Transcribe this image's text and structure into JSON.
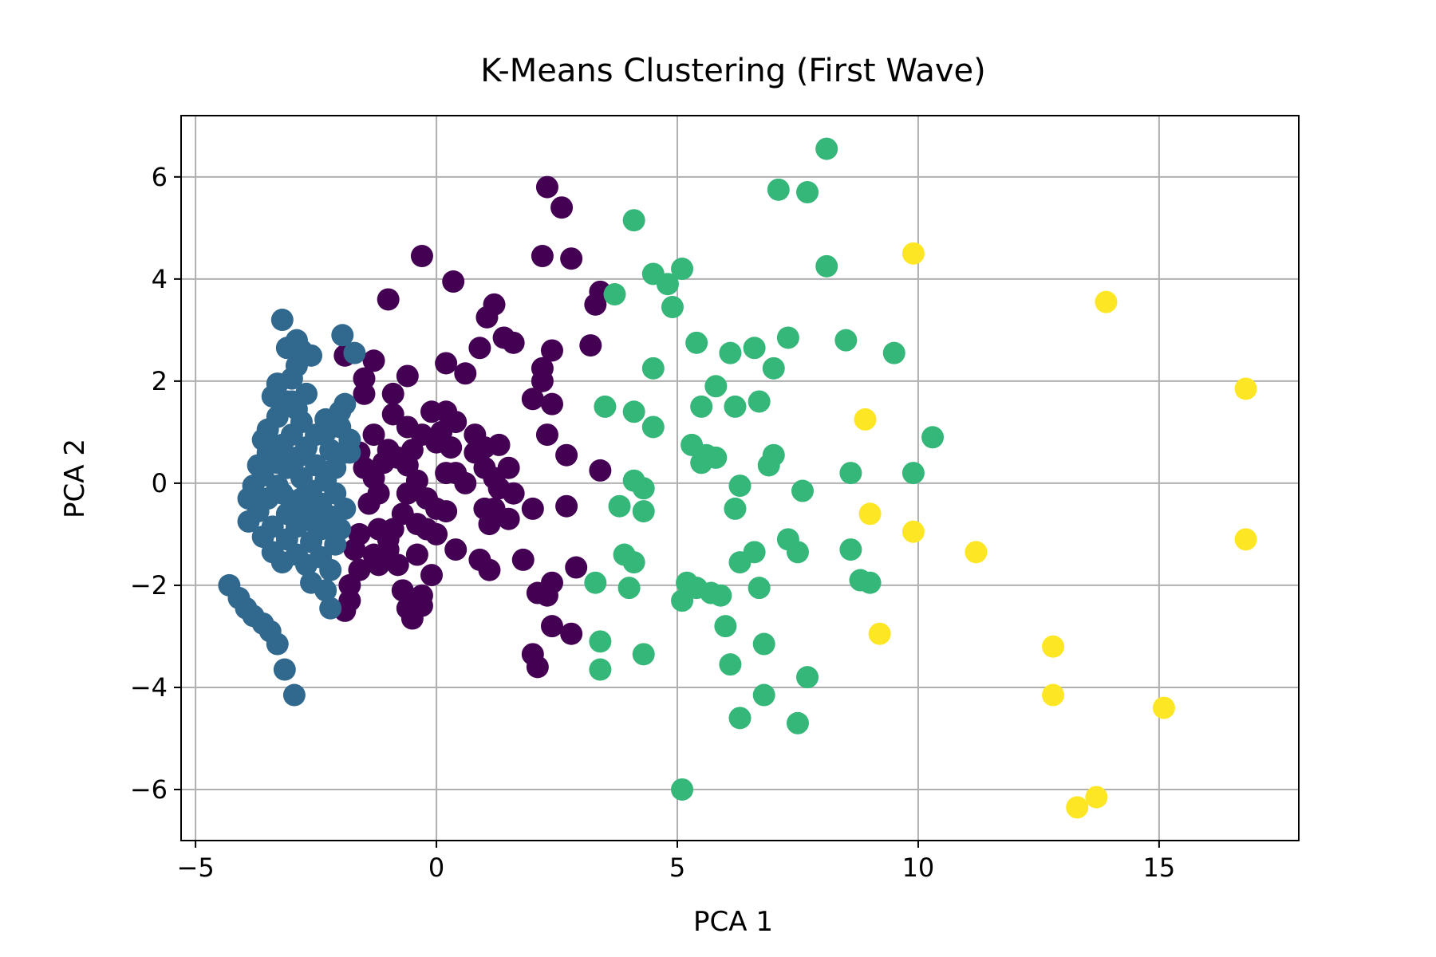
{
  "chart_data": {
    "type": "scatter",
    "title": "K-Means Clustering (First Wave)",
    "xlabel": "PCA 1",
    "ylabel": "PCA 2",
    "xlim": [
      -5.3,
      17.9
    ],
    "ylim": [
      -7.0,
      7.2
    ],
    "xticks": [
      -5,
      0,
      5,
      10,
      15
    ],
    "yticks": [
      -6,
      -4,
      -2,
      0,
      2,
      4,
      6
    ],
    "grid": true,
    "legend": "none",
    "series": [
      {
        "color": "#440154",
        "points": [
          [
            2.3,
            5.8
          ],
          [
            2.6,
            5.4
          ],
          [
            2.2,
            4.45
          ],
          [
            2.8,
            4.4
          ],
          [
            -0.3,
            4.45
          ],
          [
            0.35,
            3.95
          ],
          [
            -1.0,
            3.6
          ],
          [
            3.4,
            3.75
          ],
          [
            3.3,
            3.5
          ],
          [
            1.2,
            3.5
          ],
          [
            1.05,
            3.25
          ],
          [
            1.4,
            2.85
          ],
          [
            1.6,
            2.75
          ],
          [
            3.2,
            2.7
          ],
          [
            2.4,
            2.6
          ],
          [
            0.9,
            2.65
          ],
          [
            -1.3,
            2.4
          ],
          [
            0.2,
            2.35
          ],
          [
            -1.9,
            2.5
          ],
          [
            -0.6,
            2.1
          ],
          [
            0.6,
            2.15
          ],
          [
            2.2,
            2.25
          ],
          [
            2.2,
            2.0
          ],
          [
            -1.5,
            2.05
          ],
          [
            -1.5,
            1.75
          ],
          [
            -0.9,
            1.75
          ],
          [
            2.0,
            1.65
          ],
          [
            2.4,
            1.55
          ],
          [
            0.2,
            1.4
          ],
          [
            -0.1,
            1.4
          ],
          [
            -0.9,
            1.35
          ],
          [
            0.4,
            1.2
          ],
          [
            -0.6,
            1.1
          ],
          [
            -0.3,
            0.95
          ],
          [
            0.8,
            0.95
          ],
          [
            2.3,
            0.95
          ],
          [
            -1.3,
            0.95
          ],
          [
            -0.5,
            0.65
          ],
          [
            1.0,
            0.7
          ],
          [
            1.3,
            0.75
          ],
          [
            0.0,
            0.8
          ],
          [
            0.3,
            0.7
          ],
          [
            -1.0,
            0.65
          ],
          [
            -1.6,
            0.6
          ],
          [
            -1.1,
            0.4
          ],
          [
            -0.6,
            0.35
          ],
          [
            0.8,
            0.6
          ],
          [
            2.7,
            0.55
          ],
          [
            3.4,
            0.25
          ],
          [
            0.2,
            0.2
          ],
          [
            1.0,
            0.3
          ],
          [
            1.5,
            0.3
          ],
          [
            1.2,
            0.1
          ],
          [
            -1.3,
            0.1
          ],
          [
            -0.4,
            0.05
          ],
          [
            1.3,
            -0.1
          ],
          [
            0.4,
            0.2
          ],
          [
            -0.6,
            -0.2
          ],
          [
            -1.2,
            -0.2
          ],
          [
            -0.2,
            -0.3
          ],
          [
            -1.4,
            -0.4
          ],
          [
            0.0,
            -0.5
          ],
          [
            1.0,
            -0.5
          ],
          [
            1.2,
            -0.5
          ],
          [
            2.0,
            -0.5
          ],
          [
            2.7,
            -0.45
          ],
          [
            -0.7,
            -0.6
          ],
          [
            0.2,
            -0.55
          ],
          [
            1.5,
            -0.7
          ],
          [
            1.1,
            -0.8
          ],
          [
            -0.4,
            -0.8
          ],
          [
            -1.2,
            -0.9
          ],
          [
            -1.6,
            -1.0
          ],
          [
            -0.9,
            -0.9
          ],
          [
            0.0,
            -1.0
          ],
          [
            -1.7,
            -1.3
          ],
          [
            -1.0,
            -1.3
          ],
          [
            -0.4,
            -1.4
          ],
          [
            0.4,
            -1.3
          ],
          [
            -1.2,
            -1.6
          ],
          [
            0.9,
            -1.5
          ],
          [
            1.8,
            -1.5
          ],
          [
            1.1,
            -1.7
          ],
          [
            -1.6,
            -1.7
          ],
          [
            -0.1,
            -1.8
          ],
          [
            2.9,
            -1.65
          ],
          [
            -1.8,
            -2.0
          ],
          [
            2.4,
            -1.95
          ],
          [
            -0.7,
            -2.1
          ],
          [
            2.1,
            -2.15
          ],
          [
            -0.3,
            -2.2
          ],
          [
            2.3,
            -2.2
          ],
          [
            -1.8,
            -2.3
          ],
          [
            -0.6,
            -2.45
          ],
          [
            -0.3,
            -2.4
          ],
          [
            -1.9,
            -2.5
          ],
          [
            -0.5,
            -2.65
          ],
          [
            2.4,
            -2.8
          ],
          [
            2.8,
            -2.95
          ],
          [
            2.0,
            -3.35
          ],
          [
            2.1,
            -3.6
          ],
          [
            -1.0,
            -1.1
          ],
          [
            -0.8,
            -1.6
          ],
          [
            -1.3,
            -1.4
          ],
          [
            -0.2,
            -0.9
          ],
          [
            1.6,
            -0.2
          ],
          [
            0.6,
            0.0
          ],
          [
            -1.5,
            0.3
          ],
          [
            -0.8,
            0.5
          ],
          [
            0.1,
            1.0
          ]
        ]
      },
      {
        "color": "#31688e",
        "points": [
          [
            -3.2,
            3.2
          ],
          [
            -1.95,
            2.9
          ],
          [
            -2.9,
            2.8
          ],
          [
            -2.8,
            2.6
          ],
          [
            -3.1,
            2.65
          ],
          [
            -2.6,
            2.5
          ],
          [
            -1.7,
            2.55
          ],
          [
            -2.9,
            2.3
          ],
          [
            -3.0,
            2.05
          ],
          [
            -3.3,
            1.95
          ],
          [
            -2.7,
            1.75
          ],
          [
            -3.4,
            1.7
          ],
          [
            -3.1,
            1.6
          ],
          [
            -2.9,
            1.45
          ],
          [
            -1.9,
            1.55
          ],
          [
            -3.3,
            1.3
          ],
          [
            -2.8,
            1.2
          ],
          [
            -2.3,
            1.25
          ],
          [
            -2.0,
            1.1
          ],
          [
            -3.5,
            1.05
          ],
          [
            -3.0,
            0.95
          ],
          [
            -2.5,
            0.95
          ],
          [
            -1.8,
            0.85
          ],
          [
            -3.6,
            0.85
          ],
          [
            -3.2,
            0.75
          ],
          [
            -2.7,
            0.7
          ],
          [
            -2.2,
            0.65
          ],
          [
            -3.4,
            0.55
          ],
          [
            -2.9,
            0.5
          ],
          [
            -1.8,
            0.6
          ],
          [
            -3.7,
            0.35
          ],
          [
            -3.1,
            0.3
          ],
          [
            -2.5,
            0.35
          ],
          [
            -2.1,
            0.3
          ],
          [
            -3.6,
            0.15
          ],
          [
            -2.8,
            0.1
          ],
          [
            -2.3,
            0.05
          ],
          [
            -3.8,
            -0.05
          ],
          [
            -3.3,
            -0.05
          ],
          [
            -2.6,
            -0.15
          ],
          [
            -2.1,
            -0.2
          ],
          [
            -3.9,
            -0.3
          ],
          [
            -3.5,
            -0.3
          ],
          [
            -3.0,
            -0.35
          ],
          [
            -2.4,
            -0.4
          ],
          [
            -1.9,
            -0.5
          ],
          [
            -3.7,
            -0.55
          ],
          [
            -3.1,
            -0.6
          ],
          [
            -2.7,
            -0.6
          ],
          [
            -2.2,
            -0.65
          ],
          [
            -3.9,
            -0.75
          ],
          [
            -3.4,
            -0.85
          ],
          [
            -2.9,
            -0.85
          ],
          [
            -2.4,
            -0.9
          ],
          [
            -3.6,
            -1.05
          ],
          [
            -3.1,
            -1.1
          ],
          [
            -2.6,
            -1.15
          ],
          [
            -2.1,
            -1.2
          ],
          [
            -3.4,
            -1.35
          ],
          [
            -2.9,
            -1.4
          ],
          [
            -2.4,
            -1.45
          ],
          [
            -3.2,
            -1.55
          ],
          [
            -2.7,
            -1.6
          ],
          [
            -2.2,
            -1.7
          ],
          [
            -2.6,
            -1.95
          ],
          [
            -2.3,
            -2.1
          ],
          [
            -2.2,
            -2.45
          ],
          [
            -4.3,
            -2.0
          ],
          [
            -4.1,
            -2.25
          ],
          [
            -3.95,
            -2.45
          ],
          [
            -3.8,
            -2.6
          ],
          [
            -3.6,
            -2.75
          ],
          [
            -3.45,
            -2.9
          ],
          [
            -3.3,
            -3.15
          ],
          [
            -3.15,
            -3.65
          ],
          [
            -2.95,
            -4.15
          ],
          [
            -2.0,
            1.4
          ],
          [
            -1.9,
            0.6
          ],
          [
            -2.5,
            -0.8
          ],
          [
            -3.0,
            1.6
          ],
          [
            -3.3,
            0.4
          ],
          [
            -2.8,
            -0.3
          ],
          [
            -3.5,
            0.6
          ],
          [
            -2.3,
            1.0
          ],
          [
            -2.0,
            -0.9
          ],
          [
            -3.2,
            -0.2
          ]
        ]
      },
      {
        "color": "#35b779",
        "points": [
          [
            8.1,
            6.55
          ],
          [
            7.1,
            5.75
          ],
          [
            7.7,
            5.7
          ],
          [
            4.1,
            5.15
          ],
          [
            4.5,
            4.1
          ],
          [
            5.1,
            4.2
          ],
          [
            4.8,
            3.9
          ],
          [
            8.1,
            4.25
          ],
          [
            3.7,
            3.7
          ],
          [
            4.9,
            3.45
          ],
          [
            7.3,
            2.85
          ],
          [
            8.5,
            2.8
          ],
          [
            5.4,
            2.75
          ],
          [
            6.6,
            2.65
          ],
          [
            6.1,
            2.55
          ],
          [
            9.5,
            2.55
          ],
          [
            4.5,
            2.25
          ],
          [
            7.0,
            2.25
          ],
          [
            5.8,
            1.9
          ],
          [
            6.7,
            1.6
          ],
          [
            3.5,
            1.5
          ],
          [
            5.5,
            1.5
          ],
          [
            6.2,
            1.5
          ],
          [
            4.1,
            1.4
          ],
          [
            4.5,
            1.1
          ],
          [
            10.3,
            0.9
          ],
          [
            5.3,
            0.75
          ],
          [
            7.0,
            0.55
          ],
          [
            5.6,
            0.55
          ],
          [
            5.8,
            0.5
          ],
          [
            5.5,
            0.4
          ],
          [
            6.9,
            0.35
          ],
          [
            8.6,
            0.2
          ],
          [
            9.9,
            0.2
          ],
          [
            4.1,
            0.05
          ],
          [
            4.3,
            -0.1
          ],
          [
            6.3,
            -0.05
          ],
          [
            7.6,
            -0.15
          ],
          [
            3.8,
            -0.45
          ],
          [
            4.3,
            -0.55
          ],
          [
            6.2,
            -0.5
          ],
          [
            7.3,
            -1.1
          ],
          [
            7.5,
            -1.35
          ],
          [
            6.6,
            -1.35
          ],
          [
            8.6,
            -1.3
          ],
          [
            3.9,
            -1.4
          ],
          [
            4.1,
            -1.55
          ],
          [
            6.3,
            -1.55
          ],
          [
            8.8,
            -1.9
          ],
          [
            9.0,
            -1.95
          ],
          [
            3.3,
            -1.95
          ],
          [
            4.0,
            -2.05
          ],
          [
            5.2,
            -1.95
          ],
          [
            5.4,
            -2.05
          ],
          [
            5.7,
            -2.15
          ],
          [
            5.1,
            -2.3
          ],
          [
            5.9,
            -2.2
          ],
          [
            6.7,
            -2.05
          ],
          [
            6.0,
            -2.8
          ],
          [
            3.4,
            -3.1
          ],
          [
            4.3,
            -3.35
          ],
          [
            6.8,
            -3.15
          ],
          [
            3.4,
            -3.65
          ],
          [
            6.1,
            -3.55
          ],
          [
            7.7,
            -3.8
          ],
          [
            6.8,
            -4.15
          ],
          [
            6.3,
            -4.6
          ],
          [
            7.5,
            -4.7
          ],
          [
            5.1,
            -6.0
          ]
        ]
      },
      {
        "color": "#fde725",
        "points": [
          [
            9.9,
            4.5
          ],
          [
            13.9,
            3.55
          ],
          [
            16.8,
            1.85
          ],
          [
            8.9,
            1.25
          ],
          [
            9.0,
            -0.6
          ],
          [
            9.9,
            -0.95
          ],
          [
            11.2,
            -1.35
          ],
          [
            16.8,
            -1.1
          ],
          [
            9.2,
            -2.95
          ],
          [
            12.8,
            -3.2
          ],
          [
            12.8,
            -4.15
          ],
          [
            15.1,
            -4.4
          ],
          [
            13.7,
            -6.15
          ],
          [
            13.3,
            -6.35
          ]
        ]
      }
    ]
  }
}
